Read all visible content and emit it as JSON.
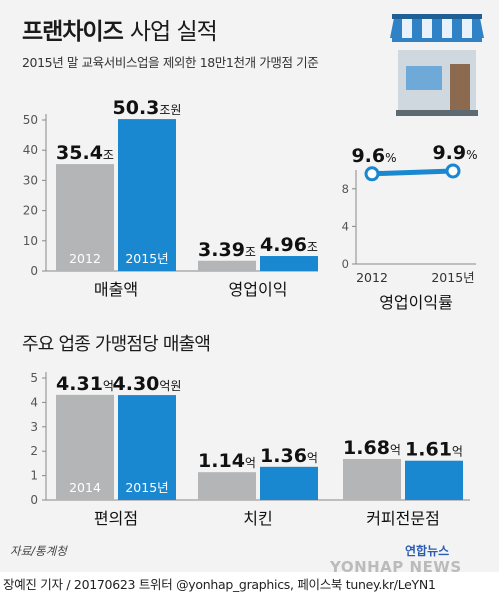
{
  "header": {
    "title_bold": "프랜차이즈",
    "title_light": "사업 실적",
    "subtitle": "2015년 말 교육서비스업을 제외한 18만1천개 가맹점 기준"
  },
  "section2_title": "주요 업종 가맹점당 매출액",
  "footer": {
    "source": "자료/통계청",
    "credit": "장예진 기자 / 20170623 트위터 @yonhap_graphics, 페이스북 tuney.kr/LeYN1",
    "logo": "연합뉴스",
    "watermark": "YONHAP NEWS"
  },
  "colors": {
    "gray": "#b3b5b7",
    "blue": "#1a88d1",
    "axis": "#888888"
  },
  "icon": "storefront-icon",
  "chart_data": [
    {
      "type": "bar",
      "title": "",
      "ylim": [
        0,
        50
      ],
      "yticks": [
        0,
        10,
        20,
        30,
        40,
        50
      ],
      "groups": [
        {
          "label": "매출액",
          "bars": [
            {
              "series": "2012",
              "value": 35.4,
              "label": "35.4",
              "unit": "조",
              "inner": "2012"
            },
            {
              "series": "2015",
              "value": 50.3,
              "label": "50.3",
              "unit": "조원",
              "inner": "2015년"
            }
          ]
        },
        {
          "label": "영업이익",
          "bars": [
            {
              "series": "2012",
              "value": 3.39,
              "label": "3.39",
              "unit": "조",
              "inner": ""
            },
            {
              "series": "2015",
              "value": 4.96,
              "label": "4.96",
              "unit": "조",
              "inner": ""
            }
          ]
        }
      ]
    },
    {
      "type": "line",
      "title": "영업이익률",
      "x": [
        "2012",
        "2015년"
      ],
      "values": [
        9.6,
        9.9
      ],
      "labels": [
        "9.6",
        "9.9"
      ],
      "unit": "%",
      "ylim": [
        0,
        10
      ],
      "yticks": [
        0,
        4,
        8
      ]
    },
    {
      "type": "bar",
      "title": "주요 업종 가맹점당 매출액",
      "ylim": [
        0,
        5
      ],
      "yticks": [
        0,
        1,
        2,
        3,
        4,
        5
      ],
      "groups": [
        {
          "label": "편의점",
          "bars": [
            {
              "series": "2014",
              "value": 4.31,
              "label": "4.31",
              "unit": "억",
              "inner": "2014"
            },
            {
              "series": "2015",
              "value": 4.3,
              "label": "4.30",
              "unit": "억원",
              "inner": "2015년"
            }
          ]
        },
        {
          "label": "치킨",
          "bars": [
            {
              "series": "2014",
              "value": 1.14,
              "label": "1.14",
              "unit": "억",
              "inner": ""
            },
            {
              "series": "2015",
              "value": 1.36,
              "label": "1.36",
              "unit": "억",
              "inner": ""
            }
          ]
        },
        {
          "label": "커피전문점",
          "bars": [
            {
              "series": "2014",
              "value": 1.68,
              "label": "1.68",
              "unit": "억",
              "inner": ""
            },
            {
              "series": "2015",
              "value": 1.61,
              "label": "1.61",
              "unit": "억",
              "inner": ""
            }
          ]
        }
      ]
    }
  ]
}
